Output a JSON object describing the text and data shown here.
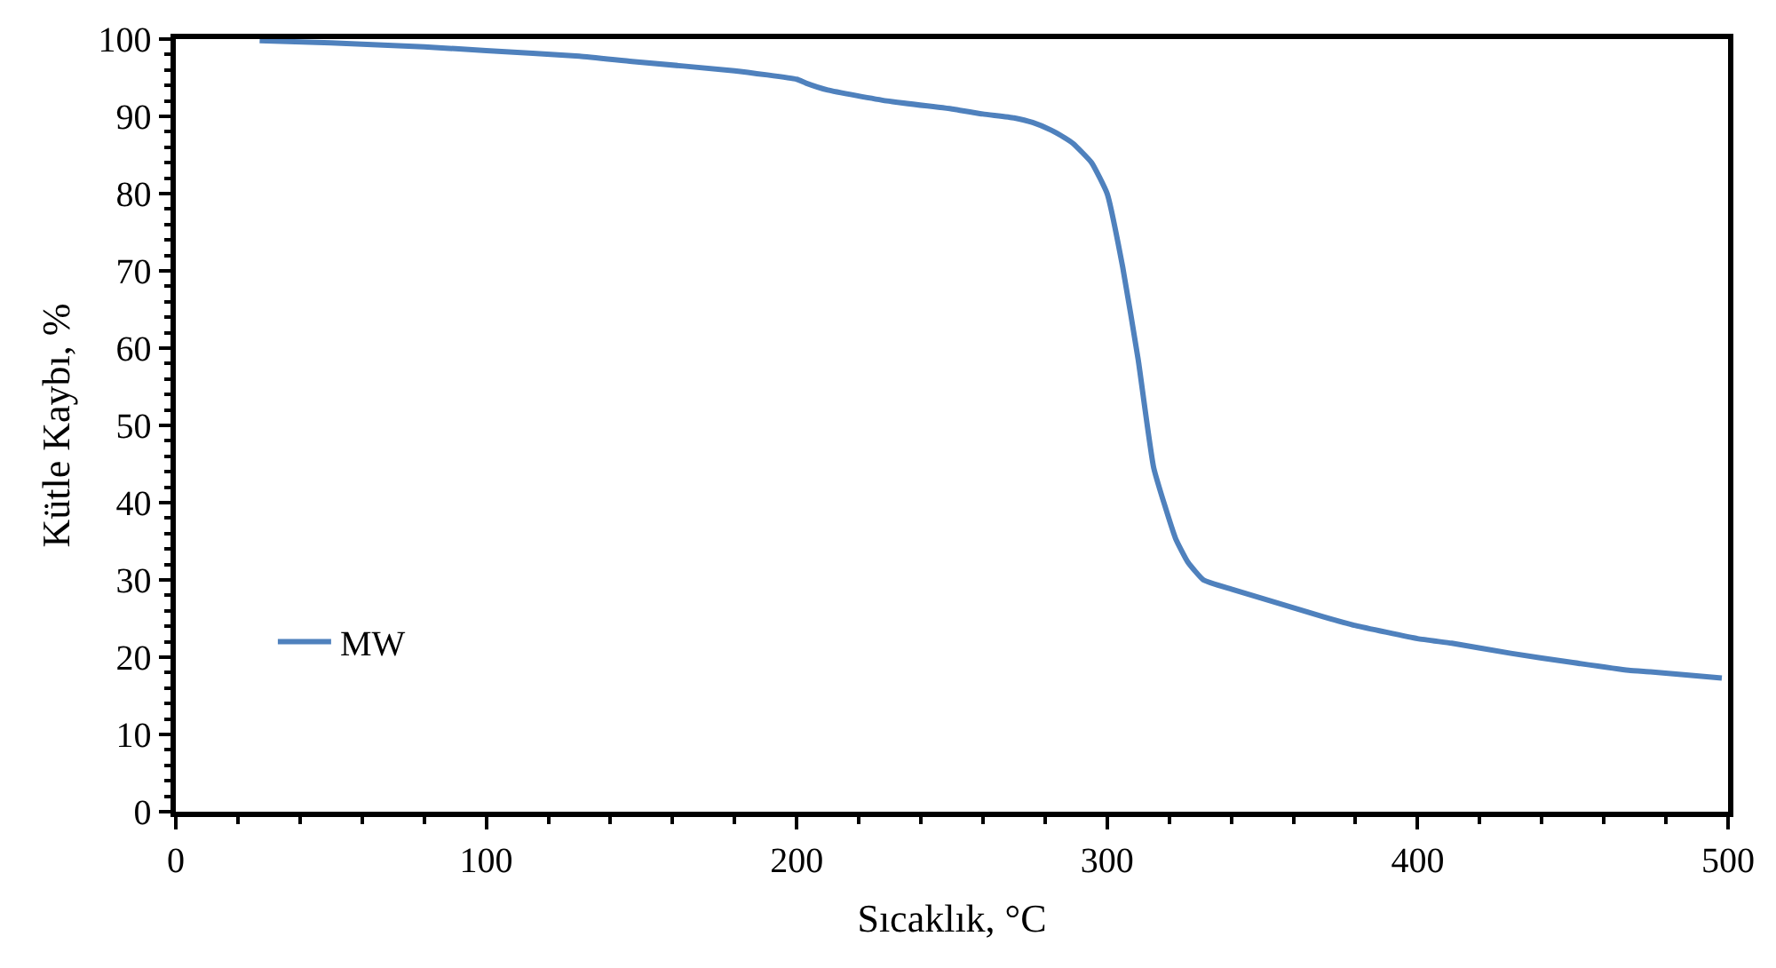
{
  "chart_data": {
    "type": "line",
    "xlabel": "Sıcaklık, °C",
    "ylabel": "Kütle Kaybı, %",
    "xlim": [
      0,
      500
    ],
    "xticks": [
      0,
      100,
      200,
      300,
      400,
      500
    ],
    "ylim": [
      0,
      100
    ],
    "yticks": [
      0,
      10,
      20,
      30,
      40,
      50,
      60,
      70,
      80,
      90,
      100
    ],
    "legend": "bottom left",
    "marker": "none",
    "line_style": "solid",
    "series": [
      {
        "name": "MW",
        "color": "#4f81bd",
        "x": [
          27,
          50,
          80,
          100,
          130,
          147,
          180,
          200,
          203,
          210,
          229,
          251,
          260,
          270,
          276,
          282,
          286,
          289,
          295,
          300,
          305,
          310,
          315,
          322,
          326,
          331,
          340,
          350,
          360,
          370,
          380,
          400,
          411,
          430,
          450,
          468,
          475,
          498
        ],
        "values": [
          99.8,
          99.5,
          99.0,
          98.5,
          97.8,
          97.1,
          95.9,
          94.8,
          94.3,
          93.4,
          92.0,
          90.9,
          90.3,
          89.8,
          89.2,
          88.2,
          87.3,
          86.5,
          84.0,
          80.0,
          70.5,
          58.5,
          44.5,
          35.4,
          32.3,
          30.0,
          28.8,
          27.6,
          26.4,
          25.2,
          24.1,
          22.4,
          21.8,
          20.5,
          19.3,
          18.3,
          18.1,
          17.3
        ]
      }
    ]
  }
}
